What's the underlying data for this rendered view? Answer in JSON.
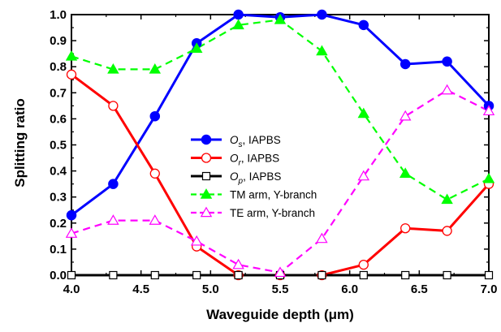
{
  "chart_data": {
    "type": "line",
    "title": "",
    "xlabel": "Waveguide depth (μm)",
    "ylabel": "Splitting ratio",
    "xlim": [
      4.0,
      7.0
    ],
    "ylim": [
      0.0,
      1.0
    ],
    "x_ticks": [
      "4.0",
      "4.5",
      "5.0",
      "5.5",
      "6.0",
      "6.5",
      "7.0"
    ],
    "y_ticks": [
      "0.0",
      "0.1",
      "0.2",
      "0.3",
      "0.4",
      "0.5",
      "0.6",
      "0.7",
      "0.8",
      "0.9",
      "1.0"
    ],
    "grid": false,
    "legend_position": "center",
    "x": [
      4.0,
      4.3,
      4.6,
      4.9,
      5.2,
      5.5,
      5.8,
      6.1,
      6.4,
      6.7,
      7.0
    ],
    "series": [
      {
        "symbol": "O",
        "subscript": "s",
        "suffix": ", IAPBS",
        "color": "#0000ff",
        "line_style": "solid",
        "marker": "filled-circle",
        "values": [
          0.23,
          0.35,
          0.61,
          0.89,
          1.0,
          0.99,
          1.0,
          0.96,
          0.81,
          0.82,
          0.65
        ]
      },
      {
        "symbol": "O",
        "subscript": "r",
        "suffix": ", IAPBS",
        "color": "#ff0000",
        "line_style": "solid",
        "marker": "open-circle",
        "values": [
          0.77,
          0.65,
          0.39,
          0.11,
          0.0,
          0.0,
          0.0,
          0.04,
          0.18,
          0.17,
          0.35
        ]
      },
      {
        "symbol": "O",
        "subscript": "p",
        "suffix": ", IAPBS",
        "color": "#000000",
        "line_style": "solid",
        "marker": "open-square",
        "values": [
          0.0,
          0.0,
          0.0,
          0.0,
          0.0,
          0.0,
          0.0,
          0.0,
          0.0,
          0.0,
          0.0
        ]
      },
      {
        "name": "TM arm, Y-branch",
        "color": "#00ff00",
        "line_style": "dashed",
        "marker": "filled-triangle",
        "values": [
          0.84,
          0.79,
          0.79,
          0.87,
          0.96,
          0.98,
          0.86,
          0.62,
          0.39,
          0.29,
          0.37
        ]
      },
      {
        "name": "TE arm, Y-branch",
        "color": "#ff00ff",
        "line_style": "dashed",
        "marker": "open-triangle",
        "values": [
          0.16,
          0.21,
          0.21,
          0.13,
          0.04,
          0.01,
          0.14,
          0.38,
          0.61,
          0.71,
          0.63
        ]
      }
    ]
  }
}
